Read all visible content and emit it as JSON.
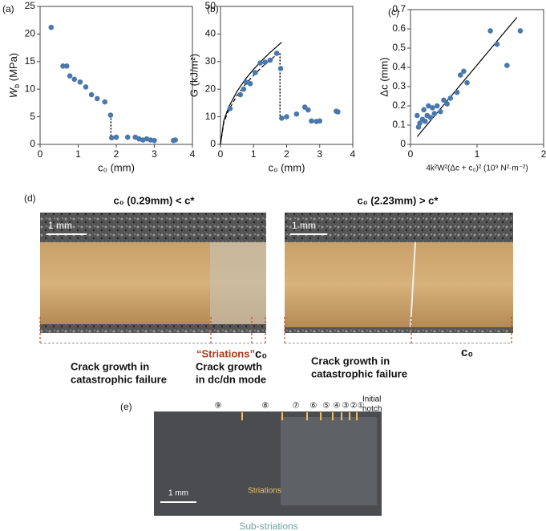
{
  "chart_data": [
    {
      "type": "scatter",
      "panel_label": "(a)",
      "xlabel": "c₀ (mm)",
      "ylabel": {
        "main": "W",
        "sub": "b",
        "unit": " (MPa)"
      },
      "xlim": [
        0,
        4
      ],
      "ylim": [
        0,
        25
      ],
      "xticks": [
        0,
        1,
        2,
        3,
        4
      ],
      "yticks": [
        0,
        5,
        10,
        15,
        20,
        25
      ],
      "series": [
        {
          "color": "#4a78ad",
          "x": [
            0.29,
            0.6,
            0.7,
            0.78,
            0.9,
            1.05,
            1.2,
            1.35,
            1.5,
            1.7,
            1.85,
            1.88,
            2.0,
            2.3,
            2.5,
            2.6,
            2.7,
            2.8,
            2.9,
            3.0,
            3.5,
            3.55
          ],
          "values": [
            21.2,
            14.2,
            14.2,
            12.4,
            11.8,
            11.3,
            10.4,
            9,
            8.3,
            7.7,
            5.3,
            1.2,
            1.3,
            1.3,
            1.3,
            1.0,
            0.8,
            1.0,
            0.8,
            0.7,
            0.7,
            0.8
          ]
        }
      ],
      "lines": [
        {
          "style": "dotted",
          "x": [
            1.86,
            1.86
          ],
          "values": [
            5.3,
            0.8
          ]
        }
      ]
    },
    {
      "type": "scatter",
      "panel_label": "(b)",
      "xlabel": "c₀ (mm)",
      "ylabel": "G (kJ/m²)",
      "xlim": [
        0,
        4
      ],
      "ylim": [
        0,
        50
      ],
      "xticks": [
        0,
        1,
        2,
        3,
        4
      ],
      "yticks": [
        0,
        10,
        20,
        30,
        40,
        50
      ],
      "series": [
        {
          "color": "#4a78ad",
          "x": [
            0.29,
            0.6,
            0.7,
            0.78,
            0.9,
            1.05,
            1.2,
            1.35,
            1.5,
            1.7,
            1.82,
            1.85,
            2.0,
            2.3,
            2.55,
            2.65,
            2.75,
            2.9,
            3.0,
            3.5,
            3.55
          ],
          "values": [
            13,
            18,
            20,
            22.5,
            22,
            26,
            29.5,
            29.8,
            30.5,
            33,
            27.5,
            9.5,
            10,
            11,
            13.5,
            12.5,
            8.5,
            8.3,
            8.5,
            12,
            11.8
          ]
        }
      ],
      "lines": [
        {
          "style": "solid",
          "x": [
            0,
            0.1,
            0.25,
            0.5,
            0.75,
            1,
            1.25,
            1.5,
            1.85
          ],
          "values": [
            0,
            8.6,
            13.6,
            19.2,
            23.6,
            27.2,
            30.4,
            33.3,
            37
          ]
        },
        {
          "style": "dashed",
          "x": [
            0,
            0.1,
            0.25,
            0.5,
            0.75,
            1,
            1.25,
            1.5,
            1.75
          ],
          "values": [
            0,
            7.9,
            12.5,
            17.7,
            21.7,
            25,
            28,
            30.6,
            33
          ]
        },
        {
          "style": "dotted",
          "x": [
            1.8,
            1.8
          ],
          "values": [
            33,
            9
          ]
        }
      ]
    },
    {
      "type": "scatter",
      "panel_label": "(c)",
      "xlabel": "4k²W²(Δc + c₀)² (10⁹ N²·m⁻²)",
      "ylabel": "Δc (mm)",
      "xlim": [
        0,
        2
      ],
      "ylim": [
        0,
        0.7
      ],
      "xticks": [
        0,
        1,
        2
      ],
      "yticks": [
        0,
        0.1,
        0.2,
        0.3,
        0.4,
        0.5,
        0.6,
        0.7
      ],
      "series": [
        {
          "color": "#4a78ad",
          "x": [
            0.1,
            0.12,
            0.14,
            0.18,
            0.2,
            0.22,
            0.25,
            0.27,
            0.3,
            0.33,
            0.36,
            0.4,
            0.45,
            0.5,
            0.55,
            0.6,
            0.7,
            0.75,
            0.8,
            0.85,
            1.2,
            1.3,
            1.45,
            1.65
          ],
          "values": [
            0.15,
            0.09,
            0.11,
            0.13,
            0.18,
            0.12,
            0.15,
            0.2,
            0.14,
            0.19,
            0.16,
            0.2,
            0.17,
            0.23,
            0.21,
            0.24,
            0.27,
            0.36,
            0.38,
            0.32,
            0.59,
            0.52,
            0.41,
            0.59
          ]
        }
      ],
      "lines": [
        {
          "style": "solid",
          "x": [
            0.1,
            1.6
          ],
          "values": [
            0.04,
            0.66
          ]
        }
      ]
    }
  ],
  "panel_d": {
    "label": "(d)",
    "left": {
      "title": "c₀ (0.29mm) < c*",
      "scale": "1 mm",
      "striations": "“Striations”",
      "c0": "c₀",
      "catastrophic": [
        "Crack growth in",
        "catastrophic failure"
      ],
      "dcdn": [
        "Crack growth",
        "in dc/dn mode"
      ]
    },
    "right": {
      "title": "c₀ (2.23mm) > c*",
      "scale": "1 mm",
      "c0": "c₀",
      "catastrophic": [
        "Crack growth in",
        "catastrophic failure"
      ]
    }
  },
  "panel_e": {
    "label": "(e)",
    "steps": [
      "⑨",
      "⑧",
      "⑦",
      "⑥",
      "⑤",
      "④",
      "③",
      "②",
      "①"
    ],
    "notch": [
      "Initial",
      "notch"
    ],
    "striations": "Striations",
    "sub_striations": "Sub-striations",
    "scale": "1 mm"
  }
}
